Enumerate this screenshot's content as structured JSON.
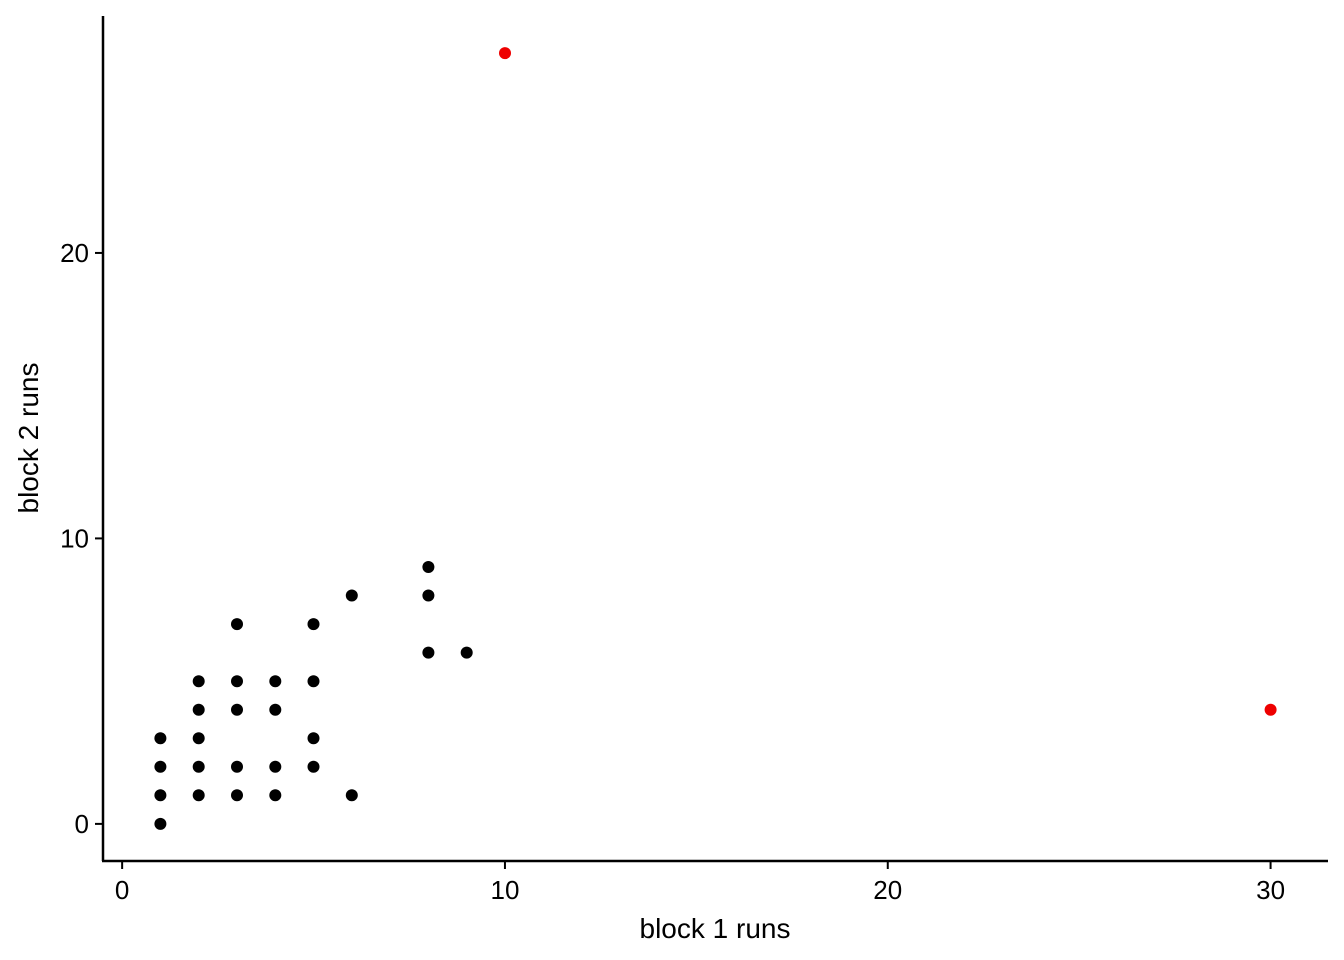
{
  "chart_data": {
    "type": "scatter",
    "title": "",
    "xlabel": "block 1 runs",
    "ylabel": "block 2 runs",
    "xlim": [
      -0.5,
      31.5
    ],
    "ylim": [
      -1.3,
      28.3
    ],
    "x_ticks": [
      0,
      10,
      20,
      30
    ],
    "y_ticks": [
      0,
      10,
      20
    ],
    "grid": false,
    "legend": "none",
    "colors": {
      "normal": "#000000",
      "highlight": "#ee0000"
    },
    "series": [
      {
        "color": "#000000",
        "points": [
          {
            "x": 1,
            "y": 0
          },
          {
            "x": 1,
            "y": 1
          },
          {
            "x": 1,
            "y": 2
          },
          {
            "x": 1,
            "y": 3
          },
          {
            "x": 2,
            "y": 1
          },
          {
            "x": 2,
            "y": 2
          },
          {
            "x": 2,
            "y": 3
          },
          {
            "x": 2,
            "y": 4
          },
          {
            "x": 2,
            "y": 5
          },
          {
            "x": 3,
            "y": 1
          },
          {
            "x": 3,
            "y": 2
          },
          {
            "x": 3,
            "y": 4
          },
          {
            "x": 3,
            "y": 5
          },
          {
            "x": 3,
            "y": 7
          },
          {
            "x": 4,
            "y": 1
          },
          {
            "x": 4,
            "y": 2
          },
          {
            "x": 4,
            "y": 4
          },
          {
            "x": 4,
            "y": 5
          },
          {
            "x": 5,
            "y": 2
          },
          {
            "x": 5,
            "y": 3
          },
          {
            "x": 5,
            "y": 5
          },
          {
            "x": 5,
            "y": 7
          },
          {
            "x": 6,
            "y": 1
          },
          {
            "x": 6,
            "y": 8
          },
          {
            "x": 8,
            "y": 6
          },
          {
            "x": 8,
            "y": 8
          },
          {
            "x": 8,
            "y": 9
          },
          {
            "x": 9,
            "y": 6
          }
        ]
      },
      {
        "color": "#ee0000",
        "points": [
          {
            "x": 10,
            "y": 27
          },
          {
            "x": 30,
            "y": 4
          }
        ]
      }
    ]
  }
}
